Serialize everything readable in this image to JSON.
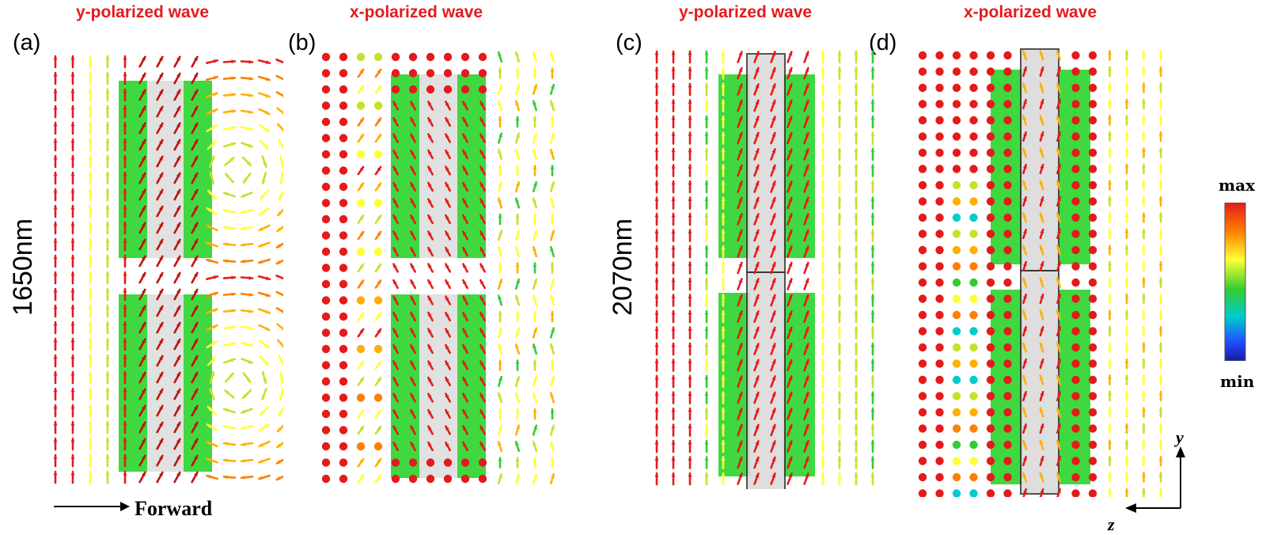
{
  "titles": {
    "a": "y-polarized wave",
    "b": "x-polarized wave",
    "c": "y-polarized wave",
    "d": "x-polarized wave"
  },
  "panel_labels": {
    "a": "(a)",
    "b": "(b)",
    "c": "(c)",
    "d": "(d)"
  },
  "wavelengths": {
    "top": "1650nm",
    "bottom": "2070nm"
  },
  "colorbar": {
    "max_label": "max",
    "min_label": "min",
    "colors": [
      "#e41a1c",
      "#ff7f00",
      "#ffff33",
      "#33cc33",
      "#00cccc",
      "#1f4fff",
      "#1a1aa0"
    ]
  },
  "forward_label": "Forward",
  "axes": {
    "y_label": "y",
    "z_label": "z"
  },
  "colors": {
    "title": "#e41a1c",
    "green_block": "#2bd42b",
    "gray_block": "#d9d9d9",
    "field_max": "#cc1a1a"
  }
}
